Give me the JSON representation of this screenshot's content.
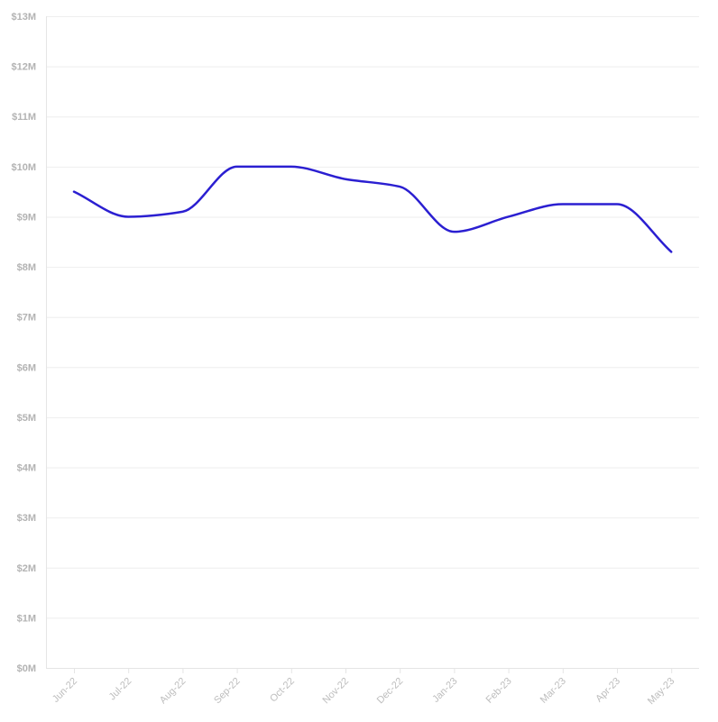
{
  "chart_data": {
    "type": "line",
    "title": "",
    "xlabel": "",
    "ylabel": "",
    "categories": [
      "Jun-22",
      "Jul-22",
      "Aug-22",
      "Sep-22",
      "Oct-22",
      "Nov-22",
      "Dec-22",
      "Jan-23",
      "Feb-23",
      "Mar-23",
      "Apr-23",
      "May-23"
    ],
    "series": [
      {
        "values": [
          9.5,
          9.0,
          9.1,
          10.0,
          10.0,
          9.75,
          9.6,
          8.7,
          9.0,
          9.25,
          9.25,
          8.3
        ],
        "color": "#2b1fd1"
      }
    ],
    "y_unit": "$M",
    "ylim": [
      0,
      13
    ],
    "y_ticks": [
      0,
      1,
      2,
      3,
      4,
      5,
      6,
      7,
      8,
      9,
      10,
      11,
      12,
      13
    ],
    "y_tick_labels": [
      "$0M",
      "$1M",
      "$2M",
      "$3M",
      "$4M",
      "$5M",
      "$6M",
      "$7M",
      "$8M",
      "$9M",
      "$10M",
      "$11M",
      "$12M",
      "$13M"
    ],
    "grid": true,
    "x_tick_rotation": "diagonal",
    "legend": "none"
  }
}
